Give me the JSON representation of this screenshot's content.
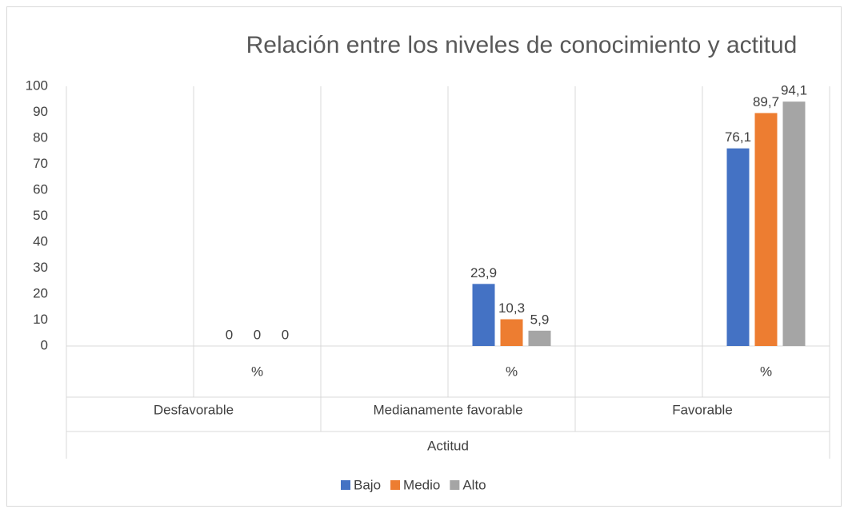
{
  "chart_data": {
    "type": "bar",
    "title": "Relación entre los niveles de conocimiento y actitud",
    "categories": [
      null,
      "%",
      null,
      "%",
      null,
      "%"
    ],
    "category_groups": [
      "Desfavorable",
      "Medianamente favorable",
      "Favorable"
    ],
    "category_super": "Actitud",
    "series": [
      {
        "name": "Bajo",
        "color": "#4472c4",
        "values": [
          null,
          0,
          null,
          23.9,
          null,
          76.1
        ],
        "value_labels": [
          null,
          "0",
          null,
          "23,9",
          null,
          "76,1"
        ]
      },
      {
        "name": "Medio",
        "color": "#ed7d31",
        "values": [
          null,
          0,
          null,
          10.3,
          null,
          89.7
        ],
        "value_labels": [
          null,
          "0",
          null,
          "10,3",
          null,
          "89,7"
        ]
      },
      {
        "name": "Alto",
        "color": "#a5a5a5",
        "values": [
          null,
          0,
          null,
          5.9,
          null,
          94.1
        ],
        "value_labels": [
          null,
          "0",
          null,
          "5,9",
          null,
          "94,1"
        ]
      }
    ],
    "ylim": [
      0,
      100
    ],
    "yticks": [
      0,
      10,
      20,
      30,
      40,
      50,
      60,
      70,
      80,
      90,
      100
    ],
    "grid": false,
    "legend": "bottom"
  }
}
